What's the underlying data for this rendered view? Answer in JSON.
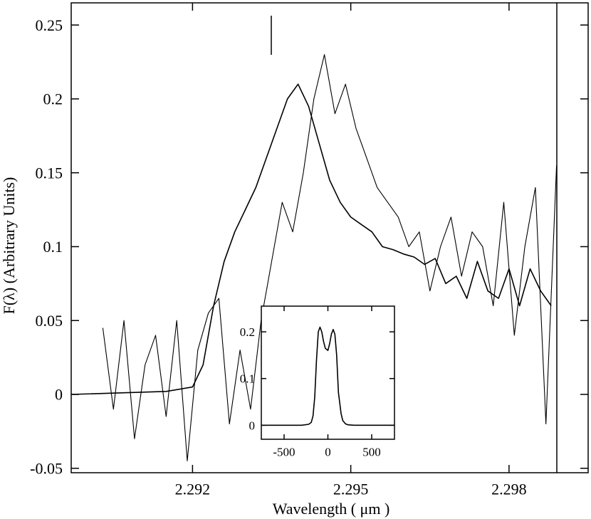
{
  "chart_data": [
    {
      "type": "line",
      "xlabel": "Wavelength ( μm )",
      "ylabel": "F(λ) (Arbitrary Units)",
      "xlim": [
        2.2897,
        2.2995
      ],
      "ylim": [
        -0.053,
        0.265
      ],
      "x_ticks": [
        2.292,
        2.295,
        2.298
      ],
      "x_tick_labels": [
        "2.292",
        "2.295",
        "2.298"
      ],
      "y_ticks": [
        -0.05,
        0,
        0.05,
        0.1,
        0.15,
        0.2,
        0.25
      ],
      "y_tick_labels": [
        "-0.05",
        "0",
        "0.05",
        "0.1",
        "0.15",
        "0.2",
        "0.25"
      ],
      "grid": false,
      "legend": "none",
      "series": [
        {
          "style": "observed noisy spectrum",
          "x": [
            2.2903,
            2.2905,
            2.2907,
            2.2909,
            2.2911,
            2.2913,
            2.2915,
            2.2917,
            2.2919,
            2.2921,
            2.2923,
            2.2925,
            2.2927,
            2.2929,
            2.2931,
            2.2933,
            2.2935,
            2.2937,
            2.2939,
            2.2941,
            2.2943,
            2.2945,
            2.2947,
            2.2949,
            2.2951,
            2.2953,
            2.2955,
            2.2957,
            2.2959,
            2.2961,
            2.2963,
            2.2965,
            2.2967,
            2.2969,
            2.2971,
            2.2973,
            2.2975,
            2.2977,
            2.2979,
            2.2981,
            2.2983,
            2.2985,
            2.2987,
            2.2989
          ],
          "y": [
            0.045,
            -0.01,
            0.05,
            -0.03,
            0.02,
            0.04,
            -0.015,
            0.05,
            -0.045,
            0.03,
            0.055,
            0.065,
            -0.02,
            0.03,
            -0.01,
            0.05,
            0.09,
            0.13,
            0.11,
            0.15,
            0.2,
            0.23,
            0.19,
            0.21,
            0.18,
            0.16,
            0.14,
            0.13,
            0.12,
            0.1,
            0.11,
            0.07,
            0.1,
            0.12,
            0.08,
            0.11,
            0.1,
            0.06,
            0.13,
            0.04,
            0.1,
            0.14,
            -0.02,
            0.155
          ]
        },
        {
          "style": "smooth model fit",
          "x": [
            2.2897,
            2.2915,
            2.292,
            2.2922,
            2.2924,
            2.2926,
            2.2928,
            2.293,
            2.2932,
            2.2934,
            2.2936,
            2.2938,
            2.294,
            2.2942,
            2.2944,
            2.2946,
            2.2948,
            2.295,
            2.2952,
            2.2954,
            2.2956,
            2.2958,
            2.296,
            2.2962,
            2.2964,
            2.2966,
            2.2968,
            2.297,
            2.2972,
            2.2974,
            2.2976,
            2.2978,
            2.298,
            2.2982,
            2.2984,
            2.2986,
            2.2988
          ],
          "y": [
            0.0,
            0.002,
            0.005,
            0.02,
            0.06,
            0.09,
            0.11,
            0.125,
            0.14,
            0.16,
            0.18,
            0.2,
            0.21,
            0.195,
            0.17,
            0.145,
            0.13,
            0.12,
            0.115,
            0.11,
            0.1,
            0.098,
            0.095,
            0.093,
            0.088,
            0.092,
            0.075,
            0.08,
            0.065,
            0.09,
            0.07,
            0.065,
            0.085,
            0.06,
            0.085,
            0.07,
            0.06
          ]
        }
      ]
    },
    {
      "type": "line",
      "xlim": [
        -760,
        760
      ],
      "ylim": [
        -0.03,
        0.255
      ],
      "x_ticks": [
        -500,
        0,
        500
      ],
      "x_tick_labels": [
        "-500",
        "0",
        "500"
      ],
      "y_ticks": [
        0,
        0.1,
        0.2
      ],
      "y_tick_labels": [
        "0",
        "0.1",
        "0.2"
      ],
      "series": [
        {
          "style": "double-peaked profile",
          "x": [
            -760,
            -300,
            -220,
            -190,
            -170,
            -150,
            -130,
            -110,
            -90,
            -70,
            -50,
            -30,
            0,
            20,
            40,
            60,
            80,
            100,
            120,
            150,
            170,
            200,
            230,
            300,
            760
          ],
          "y": [
            0.0,
            0.0,
            0.002,
            0.006,
            0.02,
            0.06,
            0.14,
            0.2,
            0.21,
            0.2,
            0.18,
            0.165,
            0.16,
            0.175,
            0.195,
            0.205,
            0.195,
            0.15,
            0.07,
            0.025,
            0.01,
            0.003,
            0.001,
            0.0,
            0.0
          ]
        }
      ]
    }
  ]
}
